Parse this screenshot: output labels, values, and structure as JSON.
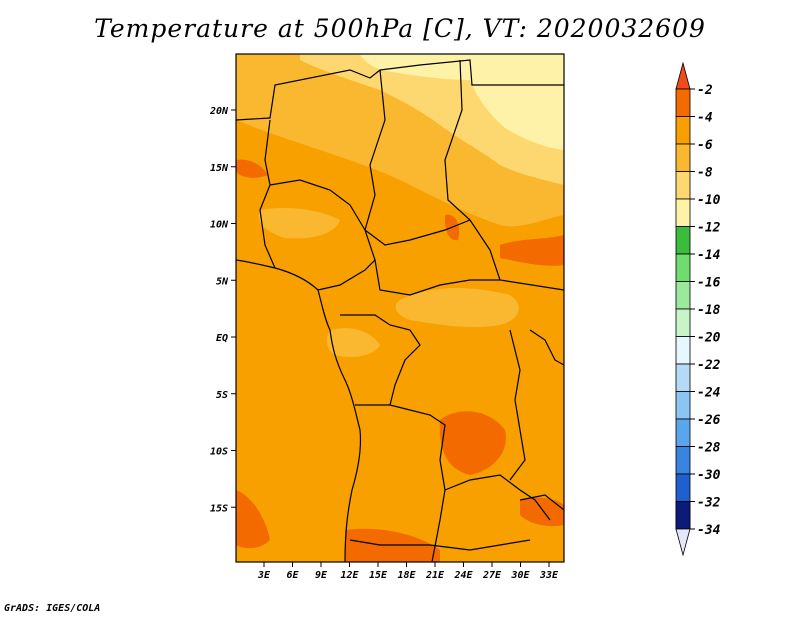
{
  "title": "Temperature at 500hPa [C], VT: 2020032609",
  "credit": "GrADS: IGES/COLA",
  "map": {
    "lat_labels": [
      {
        "text": "20N",
        "lat": 20
      },
      {
        "text": "15N",
        "lat": 15
      },
      {
        "text": "10N",
        "lat": 10
      },
      {
        "text": "5N",
        "lat": 5
      },
      {
        "text": "EQ",
        "lat": 0
      },
      {
        "text": "5S",
        "lat": -5
      },
      {
        "text": "10S",
        "lat": -10
      },
      {
        "text": "15S",
        "lat": -15
      }
    ],
    "lon_labels": [
      {
        "text": "3E",
        "lon": 3
      },
      {
        "text": "6E",
        "lon": 6
      },
      {
        "text": "9E",
        "lon": 9
      },
      {
        "text": "12E",
        "lon": 12
      },
      {
        "text": "15E",
        "lon": 15
      },
      {
        "text": "18E",
        "lon": 18
      },
      {
        "text": "21E",
        "lon": 21
      },
      {
        "text": "24E",
        "lon": 24
      },
      {
        "text": "27E",
        "lon": 27
      },
      {
        "text": "30E",
        "lon": 30
      },
      {
        "text": "33E",
        "lon": 33
      }
    ]
  },
  "colorbar": {
    "levels": [
      {
        "label": "-2",
        "color": "#f26a00"
      },
      {
        "label": "-4",
        "color": "#f7a000"
      },
      {
        "label": "-6",
        "color": "#fab830"
      },
      {
        "label": "-8",
        "color": "#fdd870"
      },
      {
        "label": "-10",
        "color": "#fef2a8"
      },
      {
        "label": "-12",
        "color": "#3cbc3c"
      },
      {
        "label": "-14",
        "color": "#70dc70"
      },
      {
        "label": "-16",
        "color": "#9ce89c"
      },
      {
        "label": "-18",
        "color": "#c8f5c8"
      },
      {
        "label": "-20",
        "color": "#e6f7ff"
      },
      {
        "label": "-22",
        "color": "#b4daf8"
      },
      {
        "label": "-24",
        "color": "#8cc4f2"
      },
      {
        "label": "-26",
        "color": "#5aa6ec"
      },
      {
        "label": "-28",
        "color": "#3a84e0"
      },
      {
        "label": "-30",
        "color": "#1e60d0"
      },
      {
        "label": "-32",
        "color": "#1442b0"
      },
      {
        "label": "-34",
        "color": "#0c1a78"
      }
    ],
    "top_arrow_color": "#f04b1c",
    "bottom_arrow_color": "#e6e6fa"
  }
}
